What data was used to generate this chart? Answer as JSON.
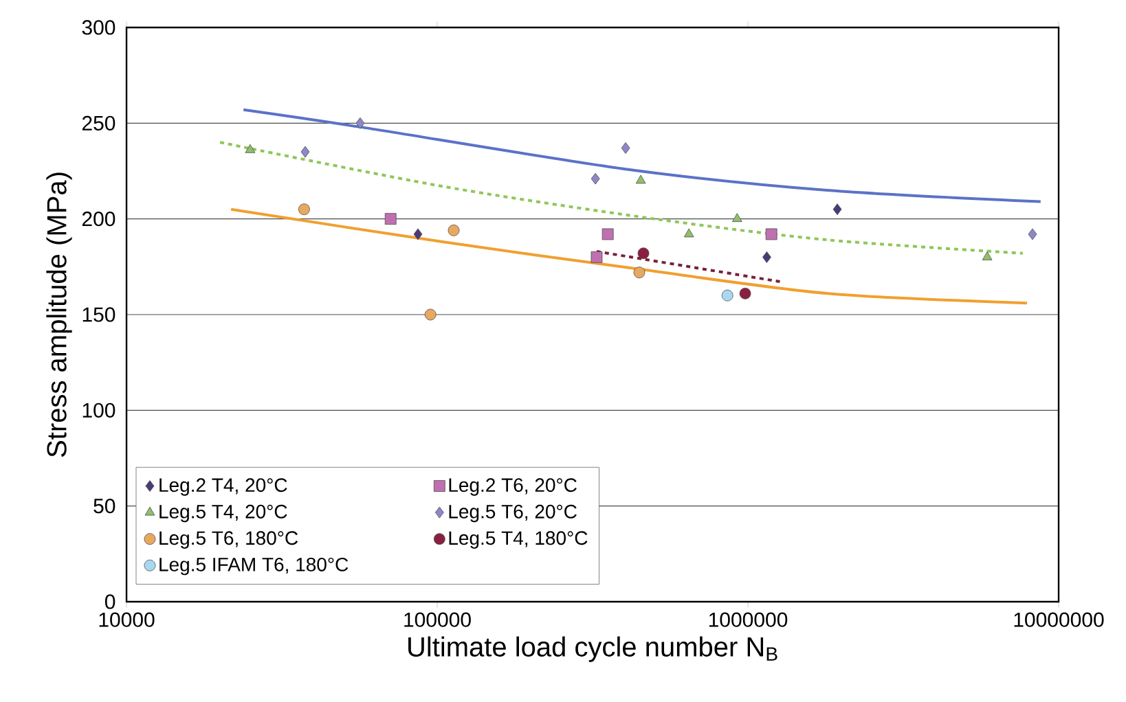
{
  "chart_data": {
    "type": "scatter",
    "xlabel": "Ultimate load cycle number N$_{B}$",
    "ylabel": "Stress amplitude (MPa)",
    "log": "x",
    "xlim": [
      10000,
      10000000
    ],
    "ylim": [
      0,
      300
    ],
    "xticks": [
      10000,
      100000,
      1000000,
      10000000
    ],
    "yticks": [
      0,
      50,
      100,
      150,
      200,
      250,
      300
    ],
    "grid": "y",
    "legend": "bottom left",
    "series": [
      {
        "name": "Leg.2 T4, 20°C",
        "color": "#4b3a7a",
        "marker": "diamond",
        "x": [
          86700,
          1150000,
          1940000
        ],
        "values": [
          192,
          180,
          205
        ]
      },
      {
        "name": "Leg.2 T6, 20°C",
        "color": "#c070b0",
        "marker": "square",
        "x": [
          70800,
          354000,
          326000,
          1190000
        ],
        "values": [
          200,
          192,
          180,
          192
        ]
      },
      {
        "name": "Leg.5 T4, 20°C",
        "color": "#8fc06a",
        "marker": "triangle",
        "x": [
          25000,
          452000,
          646000,
          923000,
          5890000
        ],
        "values": [
          236,
          220,
          192,
          200,
          180
        ]
      },
      {
        "name": "Leg.5 T6, 20°C",
        "color": "#8c88c8",
        "marker": "diamond",
        "x": [
          37600,
          56500,
          323000,
          404000,
          8240000
        ],
        "values": [
          235,
          250,
          221,
          237,
          192
        ]
      },
      {
        "name": "Leg.5 T6, 180°C",
        "color": "#e8a860",
        "marker": "circle",
        "x": [
          37300,
          113000,
          95100,
          447000
        ],
        "values": [
          205,
          194,
          150,
          172
        ]
      },
      {
        "name": "Leg.5 T4, 180°C",
        "color": "#8a2040",
        "marker": "circle",
        "x": [
          461000,
          980000
        ],
        "values": [
          182,
          161
        ]
      },
      {
        "name": "Leg.5 IFAM T6, 180°C",
        "color": "#a8d8f0",
        "marker": "circle",
        "x": [
          859000
        ],
        "values": [
          160
        ]
      },
      {
        "type": "line",
        "color": "#5b72c8",
        "line_style": "solid",
        "x": [
          23800,
          56500,
          404000,
          1770000,
          8750000
        ],
        "values": [
          257,
          248,
          226,
          215,
          209
        ]
      },
      {
        "type": "line",
        "color": "#8fc65a",
        "line_style": "dashed",
        "x": [
          20000,
          104000,
          500000,
          1810000,
          7670000
        ],
        "values": [
          240,
          217,
          200,
          189,
          182
        ]
      },
      {
        "type": "line",
        "color": "#f0a030",
        "line_style": "solid",
        "x": [
          21700,
          104000,
          434000,
          1810000,
          7910000
        ],
        "values": [
          205,
          188,
          174,
          161,
          156
        ]
      },
      {
        "type": "line",
        "color": "#7a2035",
        "line_style": "dashed",
        "x": [
          326000,
          1290000
        ],
        "values": [
          183,
          167
        ]
      }
    ]
  }
}
